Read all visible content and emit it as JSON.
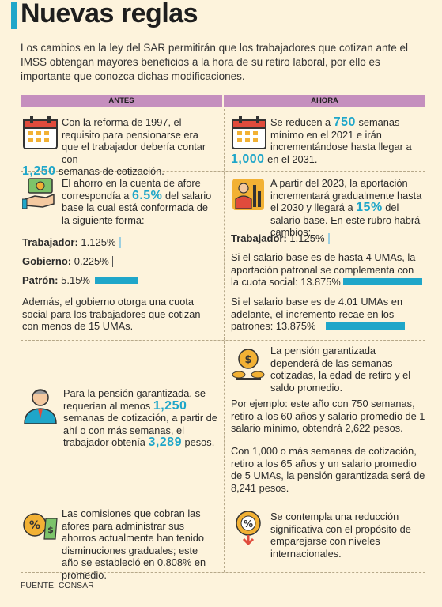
{
  "title": "Nuevas reglas",
  "intro": "Los cambios en la ley del SAR permitirán que los trabajadores que cotizan ante el IMSS obtengan mayores beneficios a la hora de su retiro laboral, por ello es importante que conozca dichas modificaciones.",
  "headers": {
    "antes": "ANTES",
    "ahora": "AHORA"
  },
  "row1": {
    "antes_pre": "Con la reforma de 1997, el requisito para pensionarse era que el trabajador debería contar con",
    "antes_num": "1,250",
    "antes_post": "semanas de cotización.",
    "ahora_pre": "Se reducen a",
    "ahora_num1": "750",
    "ahora_mid": "semanas mínimo en el 2021 e irán incrementándose hasta llegar a",
    "ahora_num2": "1,000",
    "ahora_post": "en el 2031."
  },
  "row2": {
    "antes_pre": "El ahorro en la cuenta de afore correspondía a",
    "antes_num": "6.5%",
    "antes_post": "del salario base la cual está conformada de la siguiente forma:",
    "trabajador_label": "Trabajador:",
    "trabajador_value": "1.125%",
    "gobierno_label": "Gobierno:",
    "gobierno_value": "0.225%",
    "patron_label": "Patrón:",
    "patron_value": "5.15%",
    "antes_note": "Además, el gobierno otorga una cuota social para los trabajadores que cotizan con menos de 15 UMAs.",
    "ahora_pre": "A partir del 2023, la aportación incrementará gradualmente hasta el 2030 y llegará a",
    "ahora_num": "15%",
    "ahora_post": "del salario base. En este rubro habrá cambios:",
    "ahora_trabajador_label": "Trabajador:",
    "ahora_trabajador_value": "1.125%",
    "ahora_case1": "Si el salario base es de hasta 4 UMAs, la aportación patronal se complementa con la cuota social: 13.875%",
    "ahora_case2": "Si el salario base es de 4.01 UMAs en adelante, el incremento recae en los patrones: 13.875%"
  },
  "row3": {
    "antes_pre": "Para la pensión garantizada, se requerían al menos",
    "antes_num1": "1,250",
    "antes_mid": "semanas de cotización, a partir de ahí  o con más semanas, el trabajador obtenía",
    "antes_num2": "3,289",
    "antes_post": "pesos.",
    "ahora_p1": "La pensión garantizada dependerá de las semanas cotizadas, la edad de retiro y el saldo promedio.",
    "ahora_p2": "Por ejemplo: este año con 750 semanas, retiro a los 60 años y salario promedio de 1 salario mínimo, obtendrá 2,622 pesos.",
    "ahora_p3": "Con 1,000 o más semanas de cotización, retiro a los 65 años y un salario promedio de 5 UMAs, la pensión garantizada será de 8,241 pesos."
  },
  "row4": {
    "antes": "Las comisiones que cobran las afores para administrar sus ahorros actualmente han tenido disminuciones graduales; este año se estableció en 0.808% en promedio.",
    "ahora": "Se contempla una reducción significativa con el propósito de emparejarse con niveles internacionales."
  },
  "source": "FUENTE: CONSAR",
  "colors": {
    "accent": "#1fa6c9",
    "header": "#c58fbe",
    "background": "#fdf3dc"
  },
  "icons": [
    "calendar-icon",
    "money-hand-icon",
    "worker-icon",
    "coins-icon",
    "person-icon",
    "percent-bag-icon",
    "percent-down-icon"
  ]
}
